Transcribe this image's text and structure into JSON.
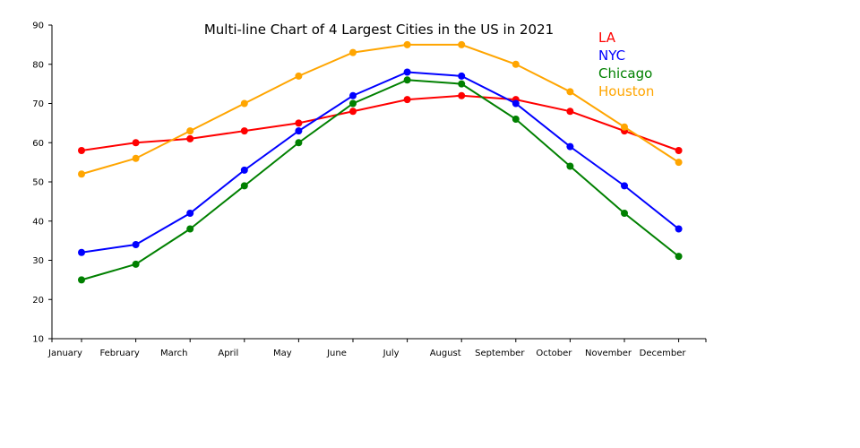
{
  "chart_data": {
    "type": "line",
    "title": "Multi-line Chart of 4 Largest Cities in the US in 2021",
    "xlabel": "",
    "ylabel": "",
    "categories": [
      "January",
      "February",
      "March",
      "April",
      "May",
      "June",
      "July",
      "August",
      "September",
      "October",
      "November",
      "December"
    ],
    "ylim": [
      10,
      90
    ],
    "yticks": [
      10,
      20,
      30,
      40,
      50,
      60,
      70,
      80,
      90
    ],
    "grid": false,
    "legend_position": "top-right",
    "series": [
      {
        "name": "LA",
        "color": "#ff0000",
        "values": [
          58,
          60,
          61,
          63,
          65,
          68,
          71,
          72,
          71,
          68,
          63,
          58
        ]
      },
      {
        "name": "NYC",
        "color": "#0000ff",
        "values": [
          32,
          34,
          42,
          53,
          63,
          72,
          78,
          77,
          70,
          59,
          49,
          38
        ]
      },
      {
        "name": "Chicago",
        "color": "#008000",
        "values": [
          25,
          29,
          38,
          49,
          60,
          70,
          76,
          75,
          66,
          54,
          42,
          31
        ]
      },
      {
        "name": "Houston",
        "color": "#ffa500",
        "values": [
          52,
          56,
          63,
          70,
          77,
          83,
          85,
          85,
          80,
          73,
          64,
          55
        ]
      }
    ]
  }
}
